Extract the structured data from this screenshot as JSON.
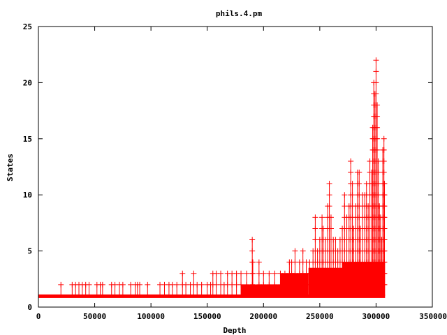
{
  "chart_data": {
    "type": "line",
    "title": "phils.4.pm",
    "xlabel": "Depth",
    "ylabel": "States",
    "xlim": [
      0,
      350000
    ],
    "ylim": [
      0,
      25
    ],
    "x_ticks": [
      0,
      50000,
      100000,
      150000,
      200000,
      250000,
      300000,
      350000
    ],
    "y_ticks": [
      0,
      5,
      10,
      15,
      20,
      25
    ],
    "x_tick_labels": [
      "0",
      "50000",
      "100000",
      "150000",
      "200000",
      "250000",
      "300000",
      "350000"
    ],
    "y_tick_labels": [
      "0",
      "5",
      "10",
      "15",
      "20",
      "25"
    ],
    "grid": false,
    "legend": "none",
    "series_color": "#ff0000",
    "marker": "plus",
    "x_max": 308000,
    "spikes": [
      {
        "x": 20000,
        "y": 2
      },
      {
        "x": 30000,
        "y": 2
      },
      {
        "x": 33000,
        "y": 2
      },
      {
        "x": 36000,
        "y": 2
      },
      {
        "x": 39000,
        "y": 2
      },
      {
        "x": 42000,
        "y": 2
      },
      {
        "x": 45000,
        "y": 2
      },
      {
        "x": 52000,
        "y": 2
      },
      {
        "x": 55000,
        "y": 2
      },
      {
        "x": 57000,
        "y": 2
      },
      {
        "x": 65000,
        "y": 2
      },
      {
        "x": 68000,
        "y": 2
      },
      {
        "x": 72000,
        "y": 2
      },
      {
        "x": 75000,
        "y": 2
      },
      {
        "x": 82000,
        "y": 2
      },
      {
        "x": 86000,
        "y": 2
      },
      {
        "x": 88000,
        "y": 2
      },
      {
        "x": 90000,
        "y": 2
      },
      {
        "x": 97000,
        "y": 2
      },
      {
        "x": 108000,
        "y": 2
      },
      {
        "x": 112000,
        "y": 2
      },
      {
        "x": 116000,
        "y": 2
      },
      {
        "x": 119000,
        "y": 2
      },
      {
        "x": 123000,
        "y": 2
      },
      {
        "x": 128000,
        "y": 3
      },
      {
        "x": 131000,
        "y": 2
      },
      {
        "x": 135000,
        "y": 2
      },
      {
        "x": 138000,
        "y": 3
      },
      {
        "x": 141000,
        "y": 2
      },
      {
        "x": 145000,
        "y": 2
      },
      {
        "x": 150000,
        "y": 2
      },
      {
        "x": 153000,
        "y": 2
      },
      {
        "x": 155000,
        "y": 3
      },
      {
        "x": 158000,
        "y": 3
      },
      {
        "x": 162000,
        "y": 3
      },
      {
        "x": 165000,
        "y": 2
      },
      {
        "x": 168000,
        "y": 3
      },
      {
        "x": 172000,
        "y": 3
      },
      {
        "x": 176000,
        "y": 3
      },
      {
        "x": 180000,
        "y": 3
      },
      {
        "x": 185000,
        "y": 3
      },
      {
        "x": 190000,
        "y": 6
      },
      {
        "x": 190500,
        "y": 4
      },
      {
        "x": 196000,
        "y": 4
      },
      {
        "x": 200000,
        "y": 3
      },
      {
        "x": 205000,
        "y": 3
      },
      {
        "x": 210000,
        "y": 3
      },
      {
        "x": 215000,
        "y": 3
      },
      {
        "x": 219000,
        "y": 3
      },
      {
        "x": 223000,
        "y": 4
      },
      {
        "x": 225000,
        "y": 4
      },
      {
        "x": 228000,
        "y": 5
      },
      {
        "x": 232000,
        "y": 4
      },
      {
        "x": 235000,
        "y": 5
      },
      {
        "x": 238000,
        "y": 4
      },
      {
        "x": 241000,
        "y": 4
      },
      {
        "x": 244000,
        "y": 5
      },
      {
        "x": 246000,
        "y": 8
      },
      {
        "x": 248000,
        "y": 5
      },
      {
        "x": 250000,
        "y": 6
      },
      {
        "x": 252000,
        "y": 8
      },
      {
        "x": 253000,
        "y": 7
      },
      {
        "x": 255000,
        "y": 6
      },
      {
        "x": 257000,
        "y": 9
      },
      {
        "x": 258500,
        "y": 11
      },
      {
        "x": 260000,
        "y": 8
      },
      {
        "x": 262000,
        "y": 6
      },
      {
        "x": 264000,
        "y": 6
      },
      {
        "x": 266000,
        "y": 5
      },
      {
        "x": 268000,
        "y": 6
      },
      {
        "x": 270000,
        "y": 7
      },
      {
        "x": 272000,
        "y": 10
      },
      {
        "x": 274000,
        "y": 8
      },
      {
        "x": 276000,
        "y": 9
      },
      {
        "x": 277500,
        "y": 13
      },
      {
        "x": 279000,
        "y": 11
      },
      {
        "x": 280000,
        "y": 7
      },
      {
        "x": 282000,
        "y": 9
      },
      {
        "x": 283500,
        "y": 12
      },
      {
        "x": 285000,
        "y": 12
      },
      {
        "x": 286000,
        "y": 7
      },
      {
        "x": 288000,
        "y": 10
      },
      {
        "x": 290000,
        "y": 10
      },
      {
        "x": 291500,
        "y": 11
      },
      {
        "x": 293000,
        "y": 9
      },
      {
        "x": 294500,
        "y": 13
      },
      {
        "x": 296000,
        "y": 12
      },
      {
        "x": 297000,
        "y": 16
      },
      {
        "x": 298000,
        "y": 20
      },
      {
        "x": 299000,
        "y": 19
      },
      {
        "x": 300000,
        "y": 22
      },
      {
        "x": 301000,
        "y": 18
      },
      {
        "x": 302000,
        "y": 13
      },
      {
        "x": 303000,
        "y": 9
      },
      {
        "x": 304000,
        "y": 8
      },
      {
        "x": 305000,
        "y": 6
      },
      {
        "x": 306000,
        "y": 14
      },
      {
        "x": 307000,
        "y": 15
      },
      {
        "x": 307500,
        "y": 11
      }
    ]
  }
}
